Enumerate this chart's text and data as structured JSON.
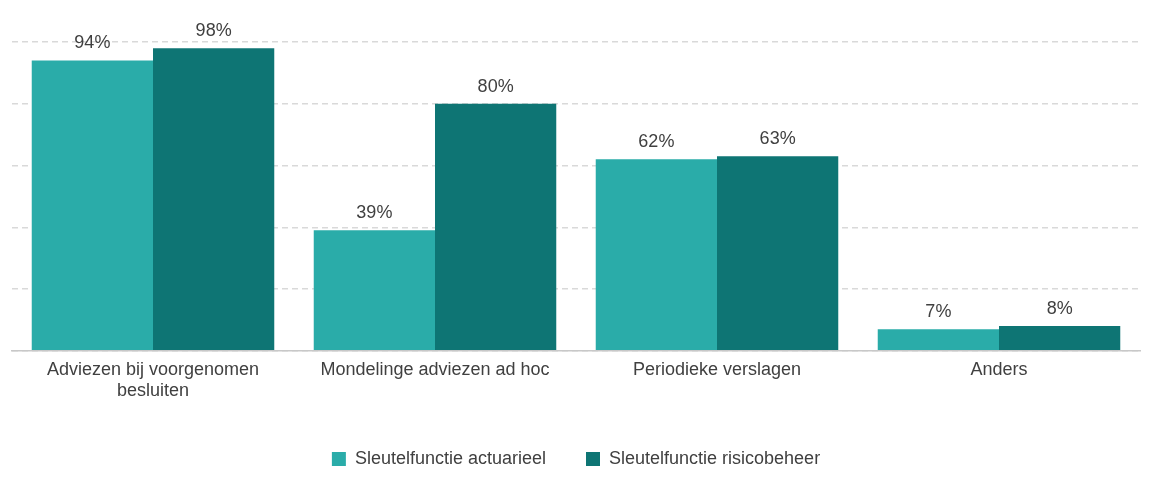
{
  "chart_data": {
    "type": "bar",
    "categories": [
      "Adviezen bij voorgenomen besluiten",
      "Mondelinge adviezen ad hoc",
      "Periodieke verslagen",
      "Anders"
    ],
    "series": [
      {
        "name": "Sleutelfunctie actuarieel",
        "color": "#2aaca9",
        "values": [
          94,
          39,
          62,
          7
        ],
        "value_labels": [
          "94%",
          "39%",
          "62%",
          "7%"
        ]
      },
      {
        "name": "Sleutelfunctie risicobeheer",
        "color": "#0e7574",
        "values": [
          98,
          80,
          63,
          8
        ],
        "value_labels": [
          "98%",
          "80%",
          "63%",
          "8%"
        ]
      }
    ],
    "ylim": [
      0,
      100
    ],
    "yticks": [
      {
        "value": 0,
        "label": null
      },
      {
        "value": 20,
        "label": null
      },
      {
        "value": 40,
        "label": null
      },
      {
        "value": 60,
        "label": null
      },
      {
        "value": 80,
        "label": null
      },
      {
        "value": 100,
        "label": null
      }
    ],
    "grid": "y",
    "legend": "bottom",
    "tick_labels": "x"
  }
}
